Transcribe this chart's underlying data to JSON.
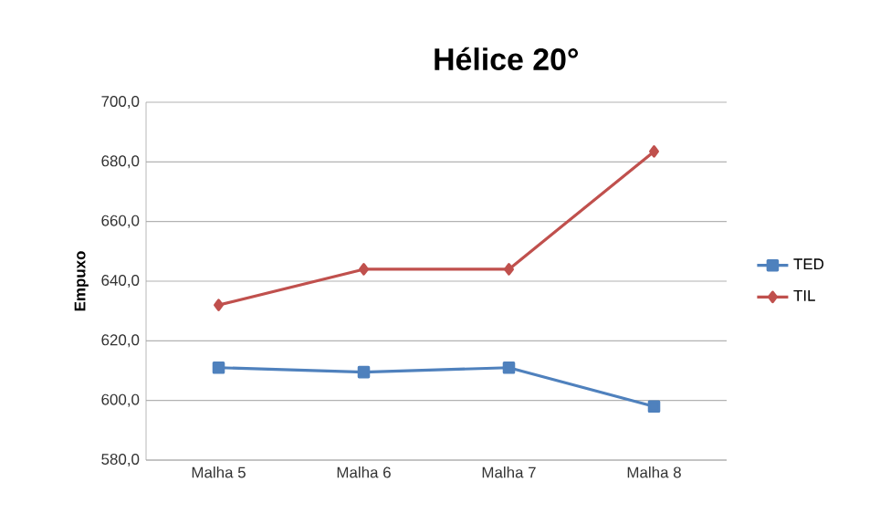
{
  "chart_data": {
    "type": "line",
    "title": "Hélice 20°",
    "ylabel": "Empuxo",
    "categories": [
      "Malha 5",
      "Malha 6",
      "Malha 7",
      "Malha 8"
    ],
    "series": [
      {
        "name": "TED",
        "color": "#4f81bd",
        "marker": "square",
        "values": [
          611,
          609.5,
          611,
          598
        ]
      },
      {
        "name": "TIL",
        "color": "#c0504d",
        "marker": "diamond",
        "values": [
          632,
          644,
          644,
          683.5
        ]
      }
    ],
    "ylim": [
      580,
      700
    ],
    "yticks": [
      {
        "value": 580,
        "label": "580,0"
      },
      {
        "value": 600,
        "label": "600,0"
      },
      {
        "value": 620,
        "label": "620,0"
      },
      {
        "value": 640,
        "label": "640,0"
      },
      {
        "value": 660,
        "label": "660,0"
      },
      {
        "value": 680,
        "label": "680,0"
      },
      {
        "value": 700,
        "label": "700,0"
      }
    ],
    "grid": "y",
    "legend": "right",
    "line_style": "solid"
  }
}
